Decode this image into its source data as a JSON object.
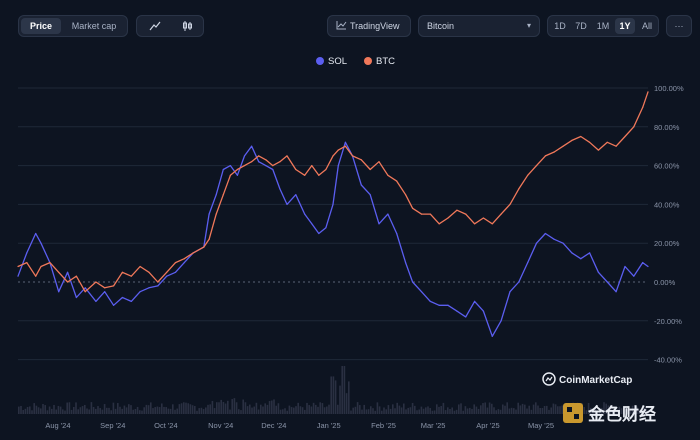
{
  "toolbar": {
    "view_tabs": [
      "Price",
      "Market cap"
    ],
    "active_view": "Price",
    "chart_type_icons": [
      "line-chart-icon",
      "candlestick-icon"
    ],
    "tradingview_label": "TradingView",
    "compare_select": "Bitcoin",
    "ranges": [
      "1D",
      "7D",
      "1M",
      "1Y",
      "All"
    ],
    "active_range": "1Y",
    "more_label": "···"
  },
  "legend": [
    {
      "name": "SOL",
      "color": "#5b5ef0"
    },
    {
      "name": "BTC",
      "color": "#f0785a"
    }
  ],
  "watermark": "CoinMarketCap",
  "corner_logo": "金色财经",
  "chart_data": {
    "type": "line",
    "x_ticks": [
      "Aug '24",
      "Sep '24",
      "Oct '24",
      "Nov '24",
      "Dec '24",
      "Jan '25",
      "Feb '25",
      "Mar '25",
      "Apr '25",
      "May '25"
    ],
    "y_ticks": [
      "100.00%",
      "80.00%",
      "60.00%",
      "40.00%",
      "20.00%",
      "0.00%",
      "-20.00%",
      "-40.00%"
    ],
    "ylim": [
      -40,
      100
    ],
    "x": [
      "2024-07-23",
      "2024-07-28",
      "2024-08-02",
      "2024-08-05",
      "2024-08-10",
      "2024-08-15",
      "2024-08-20",
      "2024-08-25",
      "2024-08-30",
      "2024-09-05",
      "2024-09-10",
      "2024-09-15",
      "2024-09-20",
      "2024-09-25",
      "2024-09-30",
      "2024-10-05",
      "2024-10-10",
      "2024-10-15",
      "2024-10-20",
      "2024-10-25",
      "2024-10-30",
      "2024-11-05",
      "2024-11-08",
      "2024-11-12",
      "2024-11-16",
      "2024-11-20",
      "2024-11-24",
      "2024-11-28",
      "2024-12-02",
      "2024-12-06",
      "2024-12-10",
      "2024-12-14",
      "2024-12-18",
      "2024-12-22",
      "2024-12-27",
      "2025-01-01",
      "2025-01-05",
      "2025-01-09",
      "2025-01-13",
      "2025-01-17",
      "2025-01-20",
      "2025-01-24",
      "2025-01-28",
      "2025-02-02",
      "2025-02-07",
      "2025-02-12",
      "2025-02-17",
      "2025-02-22",
      "2025-02-27",
      "2025-03-03",
      "2025-03-08",
      "2025-03-13",
      "2025-03-18",
      "2025-03-23",
      "2025-03-28",
      "2025-04-02",
      "2025-04-07",
      "2025-04-12",
      "2025-04-17",
      "2025-04-22",
      "2025-04-27",
      "2025-05-02",
      "2025-05-07",
      "2025-05-12",
      "2025-05-17",
      "2025-05-22",
      "2025-05-27",
      "2025-06-01",
      "2025-06-06",
      "2025-06-11",
      "2025-06-16",
      "2025-06-21",
      "2025-06-26",
      "2025-07-01",
      "2025-07-06",
      "2025-07-11",
      "2025-07-14"
    ],
    "series": [
      {
        "name": "SOL",
        "color": "#5b5ef0",
        "values": [
          3,
          15,
          25,
          20,
          10,
          -5,
          5,
          -8,
          -3,
          -10,
          -5,
          -12,
          -8,
          -10,
          -5,
          -3,
          -2,
          3,
          5,
          10,
          15,
          18,
          35,
          45,
          58,
          60,
          55,
          65,
          70,
          62,
          60,
          58,
          48,
          40,
          45,
          35,
          30,
          25,
          28,
          40,
          60,
          72,
          65,
          50,
          45,
          30,
          35,
          25,
          10,
          0,
          -5,
          -10,
          -12,
          -12,
          -15,
          -18,
          -10,
          -15,
          -28,
          -20,
          -5,
          0,
          10,
          20,
          25,
          22,
          20,
          15,
          12,
          15,
          5,
          0,
          -5,
          8,
          3,
          10,
          8
        ]
      },
      {
        "name": "BTC",
        "color": "#f0785a",
        "values": [
          8,
          10,
          3,
          8,
          10,
          5,
          0,
          3,
          -5,
          0,
          -3,
          -2,
          5,
          3,
          8,
          5,
          0,
          5,
          10,
          12,
          15,
          18,
          22,
          35,
          45,
          55,
          58,
          60,
          62,
          65,
          63,
          60,
          62,
          65,
          58,
          55,
          60,
          55,
          58,
          65,
          68,
          70,
          65,
          63,
          58,
          62,
          55,
          52,
          45,
          38,
          35,
          35,
          30,
          33,
          37,
          35,
          30,
          33,
          30,
          35,
          40,
          48,
          55,
          60,
          65,
          67,
          70,
          73,
          75,
          72,
          68,
          72,
          70,
          75,
          80,
          90,
          98
        ]
      }
    ]
  }
}
